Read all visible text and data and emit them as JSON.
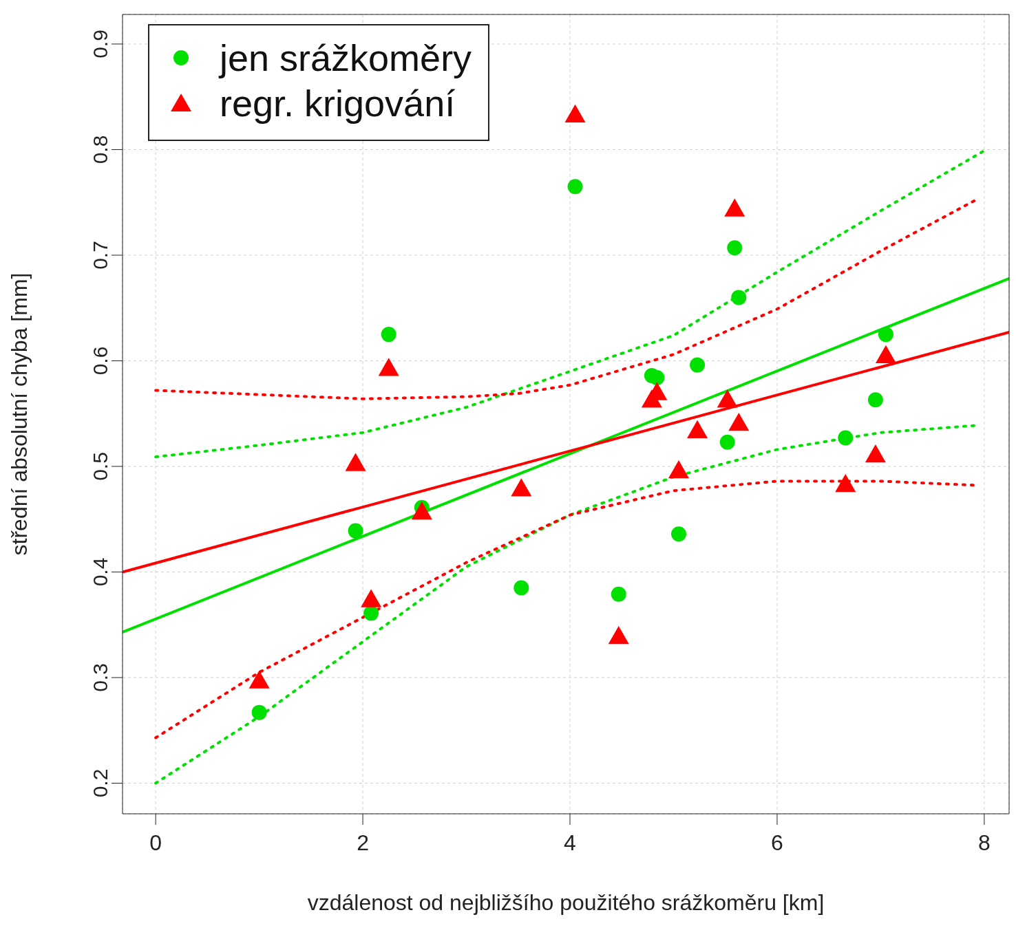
{
  "chart_data": {
    "type": "scatter",
    "xlabel": "vzdálenost od nejbližšího použitého srážkoměru [km]",
    "ylabel": "střední absolutní chyba [mm]",
    "xlim": [
      -0.32,
      8.24
    ],
    "xticks": [
      0,
      2,
      4,
      6,
      8
    ],
    "ylim": [
      0.171,
      0.928
    ],
    "yticks": [
      0.2,
      0.3,
      0.4,
      0.5,
      0.6,
      0.7,
      0.8,
      0.9
    ],
    "grid": true,
    "legend": "top left",
    "series": [
      {
        "name": "jen srážkoměry",
        "marker": "circle",
        "color": "#00e000",
        "x": [
          1.0,
          1.93,
          2.08,
          2.25,
          2.57,
          3.53,
          4.05,
          4.47,
          4.79,
          4.84,
          5.05,
          5.23,
          5.52,
          5.59,
          5.63,
          6.66,
          6.95,
          7.05
        ],
        "values": [
          0.267,
          0.439,
          0.361,
          0.625,
          0.461,
          0.385,
          0.765,
          0.379,
          0.586,
          0.584,
          0.436,
          0.596,
          0.523,
          0.707,
          0.66,
          0.527,
          0.563,
          0.625
        ]
      },
      {
        "name": "regr. krigování",
        "marker": "triangle",
        "color": "#ff0000",
        "x": [
          1.0,
          1.93,
          2.08,
          2.25,
          2.57,
          3.53,
          4.05,
          4.47,
          4.79,
          4.84,
          5.05,
          5.23,
          5.52,
          5.59,
          5.63,
          6.66,
          6.95,
          7.05
        ],
        "values": [
          0.297,
          0.503,
          0.374,
          0.593,
          0.457,
          0.479,
          0.833,
          0.339,
          0.563,
          0.57,
          0.496,
          0.534,
          0.563,
          0.744,
          0.541,
          0.483,
          0.511,
          0.605
        ]
      },
      {
        "type": "line",
        "line_style": "solid",
        "color": "#00e000",
        "x": [
          -0.32,
          8.24
        ],
        "values": [
          0.343,
          0.678
        ]
      },
      {
        "type": "line",
        "line_style": "solid",
        "color": "#ff0000",
        "x": [
          -0.32,
          8.24
        ],
        "values": [
          0.4,
          0.627
        ]
      },
      {
        "type": "line",
        "line_style": "dotted",
        "color": "#00e000",
        "x": [
          0,
          1,
          2,
          3,
          4,
          5,
          6,
          7,
          8
        ],
        "values": [
          0.509,
          0.52,
          0.532,
          0.556,
          0.59,
          0.624,
          0.684,
          0.742,
          0.799
        ]
      },
      {
        "type": "line",
        "line_style": "dotted",
        "color": "#00e000",
        "x": [
          0,
          1,
          2,
          3,
          4,
          5,
          6,
          7,
          7.95
        ],
        "values": [
          0.2,
          0.263,
          0.334,
          0.405,
          0.454,
          0.49,
          0.516,
          0.532,
          0.539
        ]
      },
      {
        "type": "line",
        "line_style": "dotted",
        "color": "#ff0000",
        "x": [
          0,
          1,
          2,
          3,
          3.5,
          4,
          5,
          6,
          7,
          7.95
        ],
        "values": [
          0.572,
          0.568,
          0.564,
          0.566,
          0.569,
          0.577,
          0.606,
          0.649,
          0.704,
          0.754
        ]
      },
      {
        "type": "line",
        "line_style": "dotted",
        "color": "#ff0000",
        "x": [
          0,
          1,
          2,
          3,
          4,
          5,
          6,
          7,
          7.95
        ],
        "values": [
          0.243,
          0.305,
          0.357,
          0.409,
          0.454,
          0.477,
          0.486,
          0.486,
          0.482
        ]
      }
    ]
  }
}
